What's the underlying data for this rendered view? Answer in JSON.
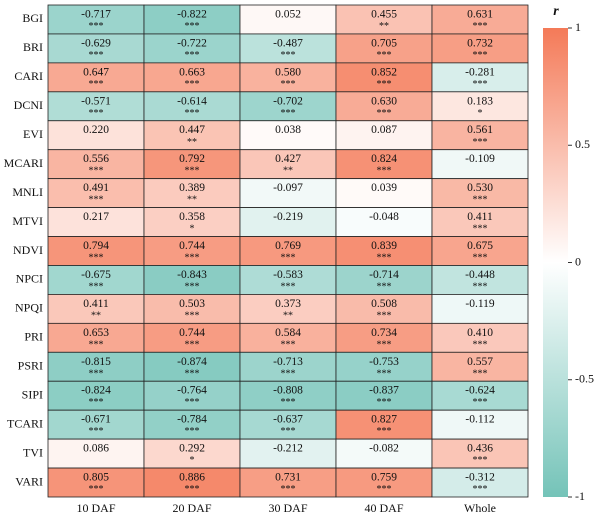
{
  "chart_data": {
    "type": "heatmap",
    "x_categories": [
      "10 DAF",
      "20 DAF",
      "30 DAF",
      "40 DAF",
      "Whole"
    ],
    "y_categories": [
      "BGI",
      "BRI",
      "CARI",
      "DCNI",
      "EVI",
      "MCARI",
      "MNLI",
      "MTVI",
      "NDVI",
      "NPCI",
      "NPQI",
      "PRI",
      "PSRI",
      "SIPI",
      "TCARI",
      "TVI",
      "VARI"
    ],
    "values": [
      [
        -0.717,
        -0.822,
        0.052,
        0.455,
        0.631
      ],
      [
        -0.629,
        -0.722,
        -0.487,
        0.705,
        0.732
      ],
      [
        0.647,
        0.663,
        0.58,
        0.852,
        -0.281
      ],
      [
        -0.571,
        -0.614,
        -0.702,
        0.63,
        0.183
      ],
      [
        0.22,
        0.447,
        0.038,
        0.087,
        0.561
      ],
      [
        0.556,
        0.792,
        0.427,
        0.824,
        -0.109
      ],
      [
        0.491,
        0.389,
        -0.097,
        0.039,
        0.53
      ],
      [
        0.217,
        0.358,
        -0.219,
        -0.048,
        0.411
      ],
      [
        0.794,
        0.744,
        0.769,
        0.839,
        0.675
      ],
      [
        -0.675,
        -0.843,
        -0.583,
        -0.714,
        -0.448
      ],
      [
        0.411,
        0.503,
        0.373,
        0.508,
        -0.119
      ],
      [
        0.653,
        0.744,
        0.584,
        0.734,
        0.41
      ],
      [
        -0.815,
        -0.874,
        -0.713,
        -0.753,
        0.557
      ],
      [
        -0.824,
        -0.764,
        -0.808,
        -0.837,
        -0.624
      ],
      [
        -0.671,
        -0.784,
        -0.637,
        0.827,
        -0.112
      ],
      [
        0.086,
        0.292,
        -0.212,
        -0.082,
        0.436
      ],
      [
        0.805,
        0.886,
        0.731,
        0.759,
        -0.312
      ]
    ],
    "value_labels": [
      [
        "-0.717",
        "-0.822",
        "0.052",
        "0.455",
        "0.631"
      ],
      [
        "-0.629",
        "-0.722",
        "-0.487",
        "0.705",
        "0.732"
      ],
      [
        "0.647",
        "0.663",
        "0.580",
        "0.852",
        "-0.281"
      ],
      [
        "-0.571",
        "-0.614",
        "-0.702",
        "0.630",
        "0.183"
      ],
      [
        "0.220",
        "0.447",
        "0.038",
        "0.087",
        "0.561"
      ],
      [
        "0.556",
        "0.792",
        "0.427",
        "0.824",
        "-0.109"
      ],
      [
        "0.491",
        "0.389",
        "-0.097",
        "0.039",
        "0.530"
      ],
      [
        "0.217",
        "0.358",
        "-0.219",
        "-0.048",
        "0.411"
      ],
      [
        "0.794",
        "0.744",
        "0.769",
        "0.839",
        "0.675"
      ],
      [
        "-0.675",
        "-0.843",
        "-0.583",
        "-0.714",
        "-0.448"
      ],
      [
        "0.411",
        "0.503",
        "0.373",
        "0.508",
        "-0.119"
      ],
      [
        "0.653",
        "0.744",
        "0.584",
        "0.734",
        "0.410"
      ],
      [
        "-0.815",
        "-0.874",
        "-0.713",
        "-0.753",
        "0.557"
      ],
      [
        "-0.824",
        "-0.764",
        "-0.808",
        "-0.837",
        "-0.624"
      ],
      [
        "-0.671",
        "-0.784",
        "-0.637",
        "0.827",
        "-0.112"
      ],
      [
        "0.086",
        "0.292",
        "-0.212",
        "-0.082",
        "0.436"
      ],
      [
        "0.805",
        "0.886",
        "0.731",
        "0.759",
        "-0.312"
      ]
    ],
    "significance": [
      [
        "***",
        "***",
        null,
        "**",
        "***"
      ],
      [
        "***",
        "***",
        "***",
        "***",
        "***"
      ],
      [
        "***",
        "***",
        "***",
        "***",
        "***"
      ],
      [
        "***",
        "***",
        "***",
        "***",
        "*"
      ],
      [
        null,
        "**",
        null,
        null,
        "***"
      ],
      [
        "***",
        "***",
        "**",
        "***",
        null
      ],
      [
        "***",
        "**",
        null,
        null,
        "***"
      ],
      [
        null,
        "*",
        null,
        null,
        "***"
      ],
      [
        "***",
        "***",
        "***",
        "***",
        "***"
      ],
      [
        "***",
        "***",
        "***",
        "***",
        "***"
      ],
      [
        "**",
        "***",
        "**",
        "***",
        null
      ],
      [
        "***",
        "***",
        "***",
        "***",
        "***"
      ],
      [
        "***",
        "***",
        "***",
        "***",
        "***"
      ],
      [
        "***",
        "***",
        "***",
        "***",
        "***"
      ],
      [
        "***",
        "***",
        "***",
        "***",
        null
      ],
      [
        null,
        "*",
        null,
        null,
        "***"
      ],
      [
        "***",
        "***",
        "***",
        "***",
        "***"
      ]
    ],
    "colorbar_title": "r",
    "clim": [
      -1,
      1
    ],
    "colorbar_ticks": [
      1,
      0.5,
      0,
      -0.5,
      -1
    ],
    "colormap": [
      "#74c3b8",
      "#ffffff",
      "#f47a58"
    ]
  }
}
